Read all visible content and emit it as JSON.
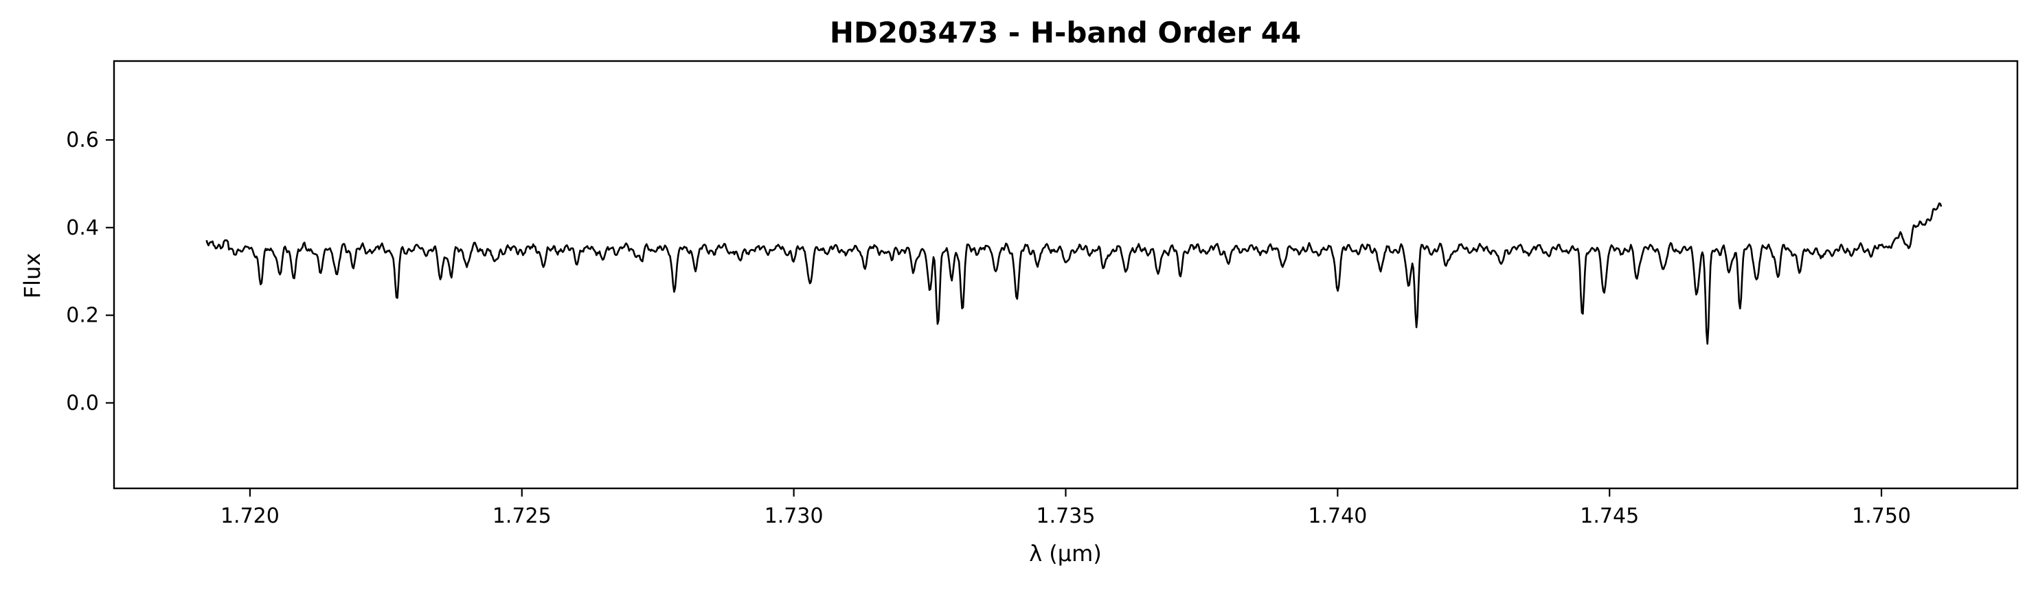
{
  "chart_data": {
    "type": "line",
    "title": "HD203473 - H-band Order 44",
    "xlabel": "λ (μm)",
    "ylabel": "Flux",
    "xlim": [
      1.7175,
      1.7525
    ],
    "ylim": [
      -0.195,
      0.78
    ],
    "xticks": [
      1.72,
      1.725,
      1.73,
      1.735,
      1.74,
      1.745,
      1.75
    ],
    "xtick_labels": [
      "1.720",
      "1.725",
      "1.730",
      "1.735",
      "1.740",
      "1.745",
      "1.750"
    ],
    "yticks": [
      0.0,
      0.2,
      0.4,
      0.6
    ],
    "ytick_labels": [
      "0.0",
      "0.2",
      "0.4",
      "0.6"
    ],
    "grid": false,
    "line_color": "#000000",
    "series": [
      {
        "name": "HD203473 H-band Order 44",
        "x_start": 1.7192,
        "x_end": 1.7511,
        "continuum": 0.35,
        "wiggle_amplitude": 0.012,
        "absorption_lines": [
          [
            1.7202,
            0.08
          ],
          [
            1.72055,
            0.06
          ],
          [
            1.7208,
            0.06
          ],
          [
            1.7213,
            0.055
          ],
          [
            1.7216,
            0.06
          ],
          [
            1.7219,
            0.03
          ],
          [
            1.7227,
            0.125
          ],
          [
            1.7235,
            0.07
          ],
          [
            1.7237,
            0.06
          ],
          [
            1.724,
            0.035
          ],
          [
            1.7245,
            0.04
          ],
          [
            1.7254,
            0.03
          ],
          [
            1.726,
            0.02
          ],
          [
            1.7265,
            0.025
          ],
          [
            1.7272,
            0.03
          ],
          [
            1.7278,
            0.085
          ],
          [
            1.7282,
            0.04
          ],
          [
            1.729,
            0.03
          ],
          [
            1.73,
            0.025
          ],
          [
            1.7303,
            0.08
          ],
          [
            1.7313,
            0.035
          ],
          [
            1.7318,
            0.025
          ],
          [
            1.7322,
            0.06
          ],
          [
            1.7325,
            0.1
          ],
          [
            1.73265,
            0.16
          ],
          [
            1.7329,
            0.07
          ],
          [
            1.7331,
            0.14
          ],
          [
            1.7337,
            0.04
          ],
          [
            1.7341,
            0.1
          ],
          [
            1.7345,
            0.03
          ],
          [
            1.735,
            0.035
          ],
          [
            1.7357,
            0.045
          ],
          [
            1.7361,
            0.05
          ],
          [
            1.7367,
            0.07
          ],
          [
            1.7371,
            0.06
          ],
          [
            1.738,
            0.03
          ],
          [
            1.739,
            0.035
          ],
          [
            1.74,
            0.085
          ],
          [
            1.7408,
            0.05
          ],
          [
            1.7413,
            0.085
          ],
          [
            1.74145,
            0.175
          ],
          [
            1.742,
            0.04
          ],
          [
            1.743,
            0.04
          ],
          [
            1.7445,
            0.14
          ],
          [
            1.7449,
            0.09
          ],
          [
            1.7455,
            0.065
          ],
          [
            1.746,
            0.04
          ],
          [
            1.7466,
            0.1
          ],
          [
            1.7468,
            0.22
          ],
          [
            1.7472,
            0.06
          ],
          [
            1.7474,
            0.13
          ],
          [
            1.7477,
            0.07
          ],
          [
            1.7481,
            0.06
          ],
          [
            1.7485,
            0.05
          ],
          [
            1.7489,
            0.03
          ],
          [
            1.7505,
            0.025
          ]
        ],
        "red_edge_rise": 0.1
      }
    ]
  }
}
